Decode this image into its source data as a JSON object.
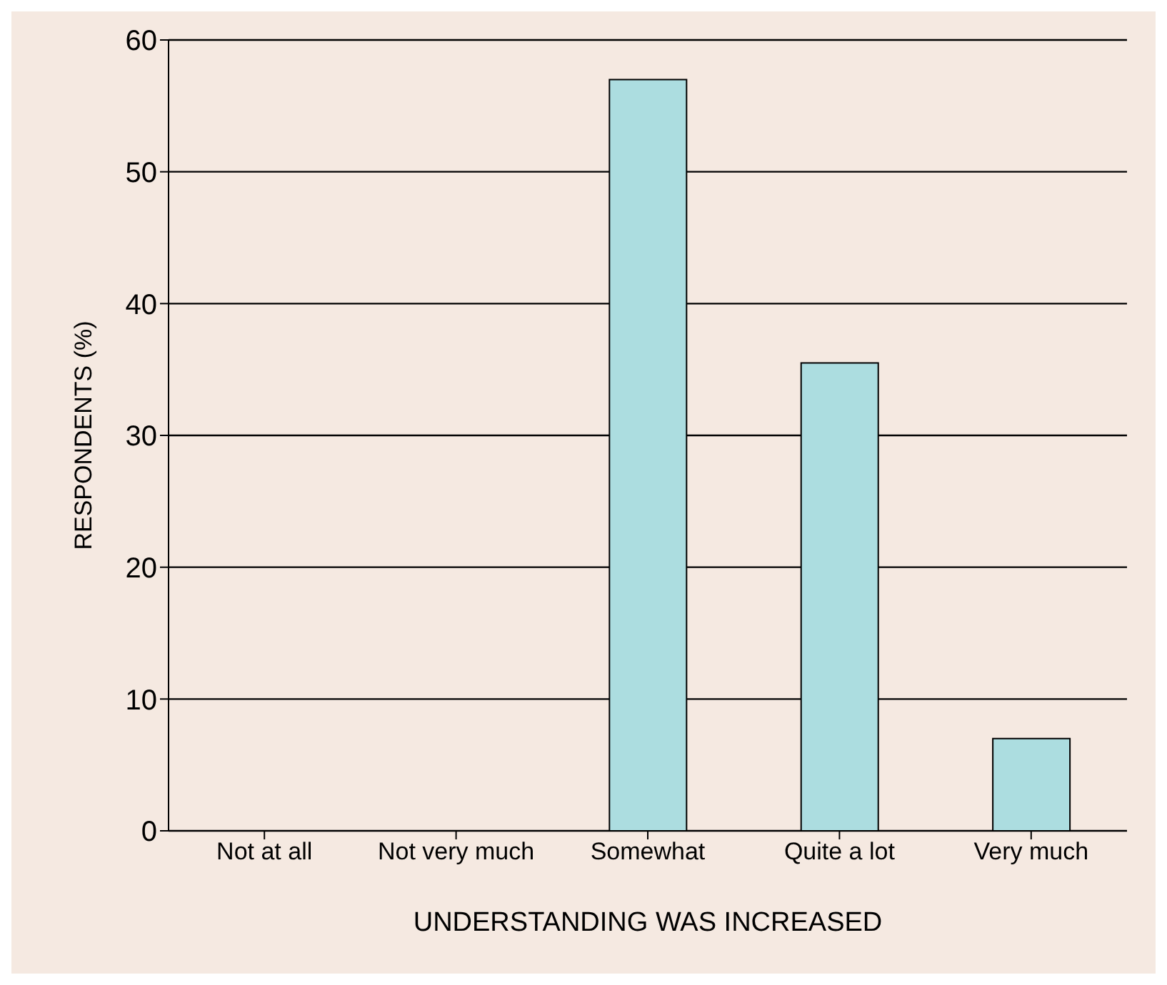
{
  "chart_data": {
    "type": "bar",
    "xlabel": "UNDERSTANDING WAS INCREASED",
    "ylabel": "RESPONDENTS (%)",
    "categories": [
      "Not at all",
      "Not very much",
      "Somewhat",
      "Quite a lot",
      "Very much"
    ],
    "values": [
      0,
      0,
      57,
      35.5,
      7
    ],
    "color": "#acdde0",
    "ylim": [
      0,
      60
    ],
    "yticks": [
      0,
      10,
      20,
      30,
      40,
      50,
      60
    ],
    "grid": "y"
  }
}
